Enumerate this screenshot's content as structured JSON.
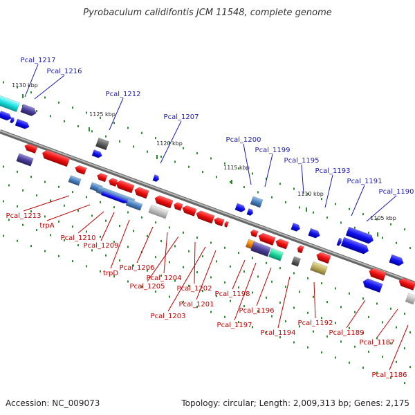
{
  "title": "Pyrobaculum calidifontis JCM 11548, complete genome",
  "accession": "Accession: NC_009073",
  "summary": "Topology: circular; Length: 2,009,313 bp; Genes: 2,175",
  "colors": {
    "forward_gene": "#1010e0",
    "reverse_gene": "#e81010",
    "top_label": "#1a1aa8",
    "bottom_label": "#b80000",
    "backbone": "#888888",
    "grid_dot": "#2a8a2a"
  },
  "scale_ticks": [
    "1130 kbp",
    "1125 kbp",
    "1120 kbp",
    "1115 kbp",
    "1110 kbp",
    "1105 kbp"
  ],
  "top_labels": [
    "Pcal_1217",
    "Pcal_1216",
    "Pcal_1212",
    "Pcal_1207",
    "Pcal_1200",
    "Pcal_1199",
    "Pcal_1195",
    "Pcal_1193",
    "Pcal_1191",
    "Pcal_1190"
  ],
  "bottom_labels": [
    "Pcal_1213",
    "trpA",
    "Pcal_1210",
    "Pcal_1209",
    "trpD",
    "Pcal_1206",
    "Pcal_1204",
    "Pcal_1205",
    "Pcal_1202",
    "Pcal_1203",
    "Pcal_1201",
    "Pcal_1198",
    "Pcal_1197",
    "Pcal_1196",
    "Pcal_1194",
    "Pcal_1192",
    "Pcal_1189",
    "Pcal_1187",
    "Pcal_1186"
  ]
}
